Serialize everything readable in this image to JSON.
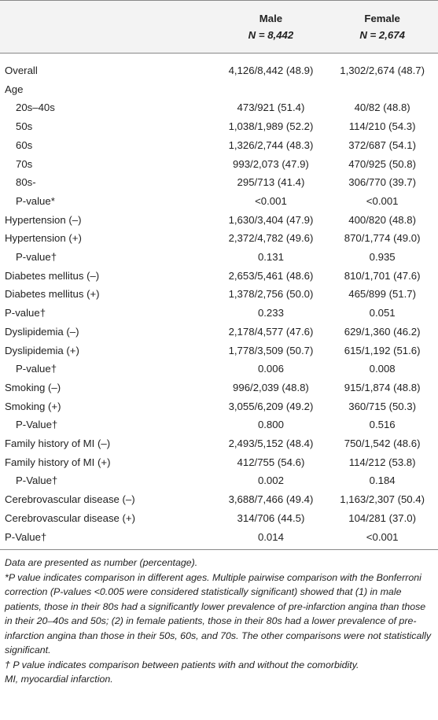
{
  "table": {
    "header": {
      "male": "Male",
      "male_n": "N = 8,442",
      "female": "Female",
      "female_n": "N = 2,674"
    },
    "rows": [
      [
        "Overall",
        "4,126/8,442 (48.9)",
        "1,302/2,674 (48.7)"
      ],
      [
        "Age",
        "",
        ""
      ],
      [
        "20s–40s",
        "473/921 (51.4)",
        "40/82 (48.8)"
      ],
      [
        "50s",
        "1,038/1,989 (52.2)",
        "114/210 (54.3)"
      ],
      [
        "60s",
        "1,326/2,744 (48.3)",
        "372/687 (54.1)"
      ],
      [
        "70s",
        "993/2,073 (47.9)",
        "470/925 (50.8)"
      ],
      [
        "80s-",
        "295/713 (41.4)",
        "306/770 (39.7)"
      ],
      [
        "P-value*",
        "<0.001",
        "<0.001"
      ],
      [
        "Hypertension (–)",
        "1,630/3,404 (47.9)",
        "400/820 (48.8)"
      ],
      [
        "Hypertension (+)",
        "2,372/4,782 (49.6)",
        "870/1,774 (49.0)"
      ],
      [
        "P-value†",
        "0.131",
        "0.935"
      ],
      [
        "Diabetes mellitus (–)",
        "2,653/5,461 (48.6)",
        "810/1,701 (47.6)"
      ],
      [
        "Diabetes mellitus (+)",
        "1,378/2,756 (50.0)",
        "465/899 (51.7)"
      ],
      [
        "P-value†",
        "0.233",
        "0.051"
      ],
      [
        "Dyslipidemia (–)",
        "2,178/4,577 (47.6)",
        "629/1,360 (46.2)"
      ],
      [
        "Dyslipidemia (+)",
        "1,778/3,509 (50.7)",
        "615/1,192 (51.6)"
      ],
      [
        "P-value†",
        "0.006",
        "0.008"
      ],
      [
        "Smoking (–)",
        "996/2,039 (48.8)",
        "915/1,874 (48.8)"
      ],
      [
        "Smoking (+)",
        "3,055/6,209 (49.2)",
        "360/715 (50.3)"
      ],
      [
        "P-Value†",
        "0.800",
        "0.516"
      ],
      [
        "Family history of MI (–)",
        "2,493/5,152 (48.4)",
        "750/1,542 (48.6)"
      ],
      [
        "Family history of MI (+)",
        "412/755 (54.6)",
        "114/212 (53.8)"
      ],
      [
        "P-Value†",
        "0.002",
        "0.184"
      ],
      [
        "Cerebrovascular disease (–)",
        "3,688/7,466 (49.4)",
        "1,163/2,307 (50.4)"
      ],
      [
        "Cerebrovascular disease (+)",
        "314/706 (44.5)",
        "104/281 (37.0)"
      ],
      [
        "P-Value†",
        "0.014",
        "<0.001"
      ]
    ],
    "notes": [
      "Data are presented as number (percentage).",
      "*P value indicates comparison in different ages. Multiple pairwise comparison with the Bonferroni correction (P-values <0.005 were considered statistically significant) showed that (1) in male patients, those in their 80s had a significantly lower prevalence of pre-infarction angina than those in their 20–40s and 50s; (2) in female patients, those in their 80s had a lower prevalence of pre-infarction angina than those in their 50s, 60s, and 70s. The other comparisons were not statistically significant.",
      "† P value indicates comparison between patients with and without the comorbidity.",
      "MI, myocardial infarction."
    ]
  }
}
